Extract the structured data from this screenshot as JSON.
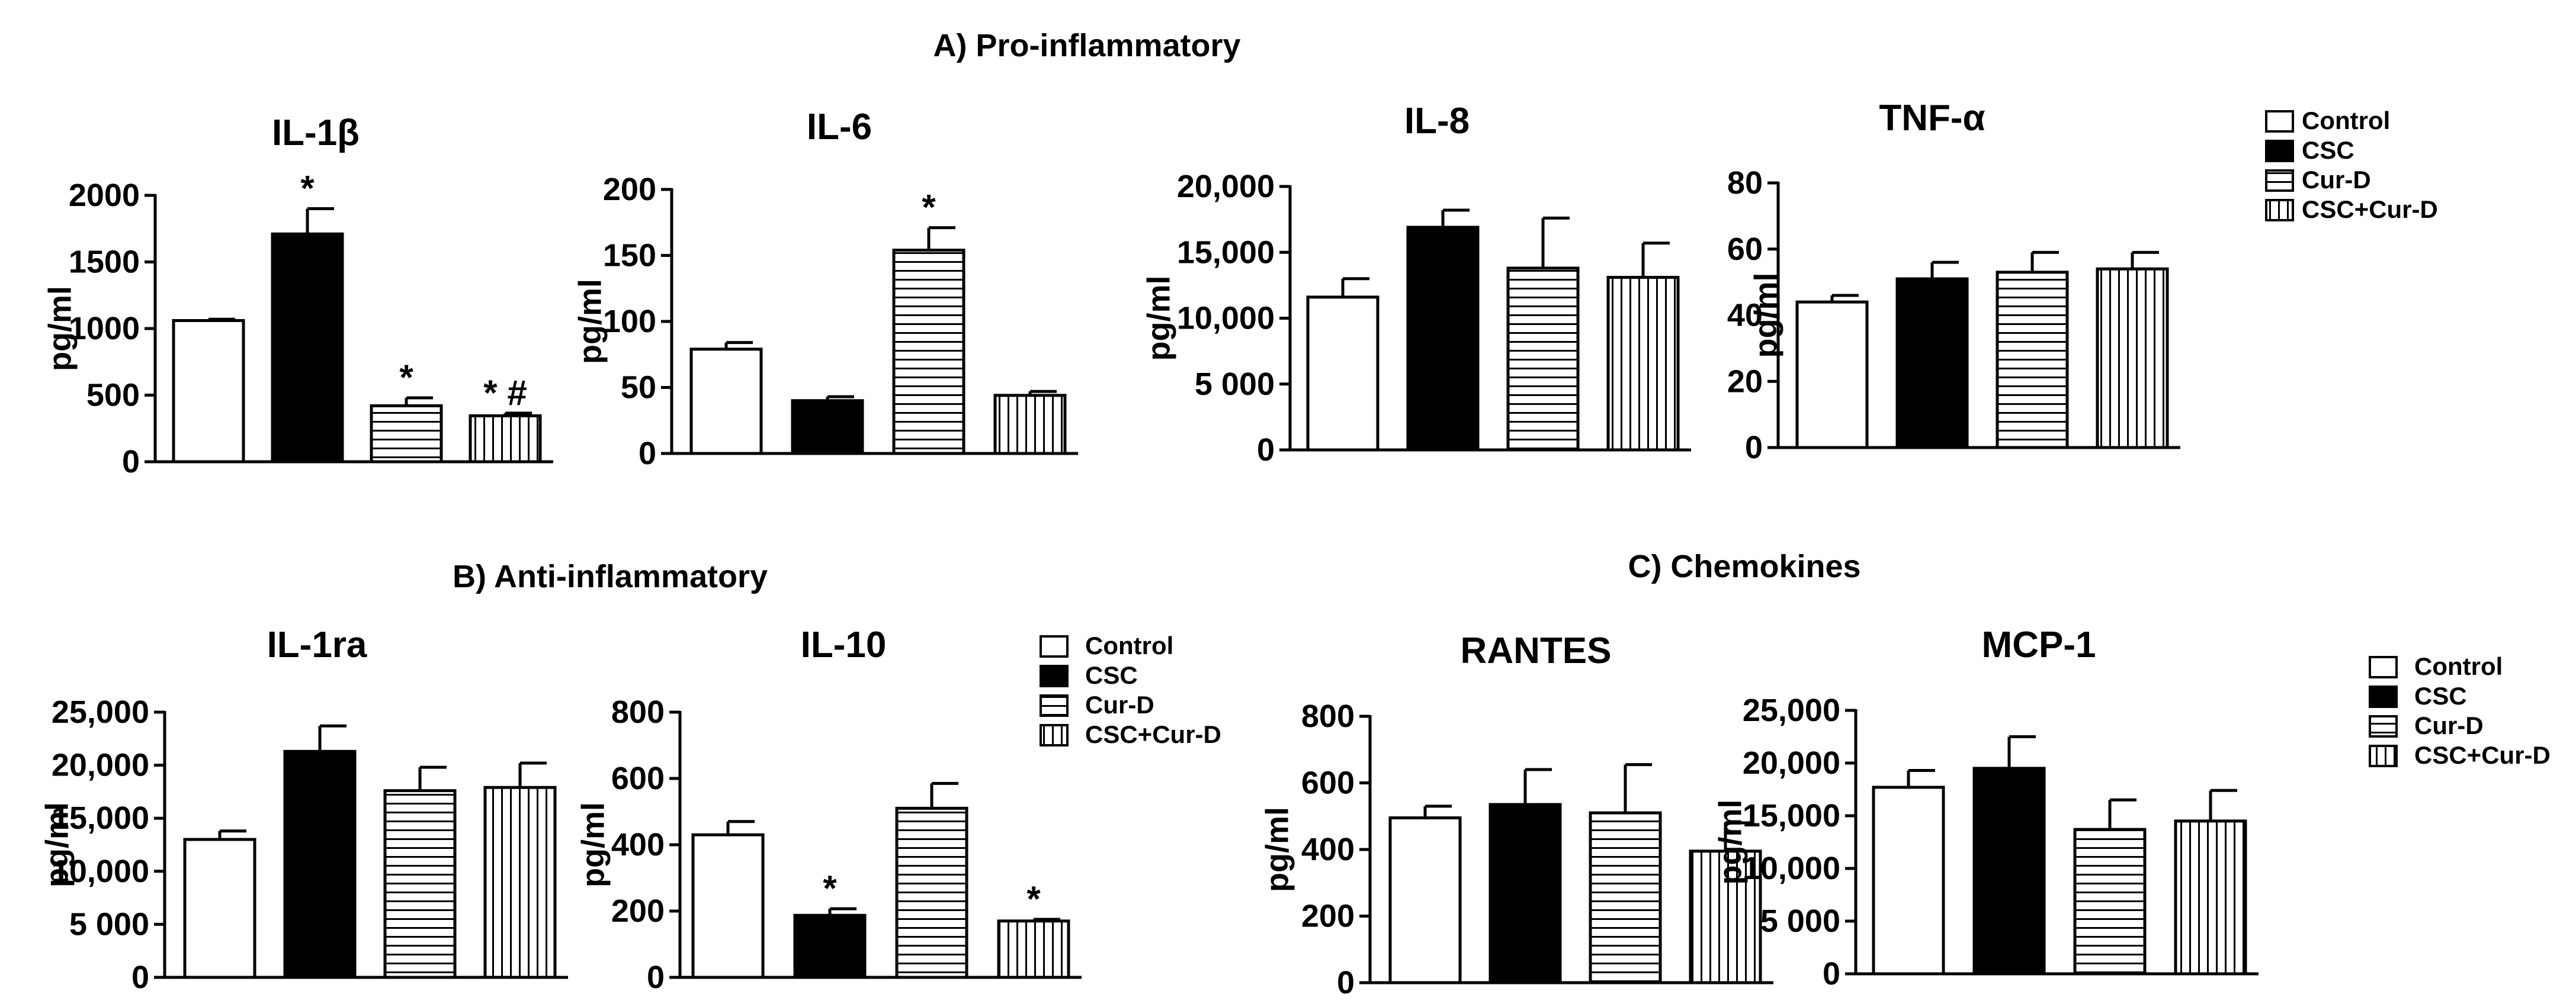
{
  "sections": {
    "a": "A) Pro-inflammatory",
    "b": "B) Anti-inflammatory",
    "c": "C) Chemokines"
  },
  "legend": {
    "items": [
      {
        "key": "control",
        "label": "Control"
      },
      {
        "key": "csc",
        "label": "CSC"
      },
      {
        "key": "curd",
        "label": "Cur-D"
      },
      {
        "key": "csccurd",
        "label": "CSC+Cur-D"
      }
    ]
  },
  "chart_data": [
    {
      "type": "bar",
      "title": "IL-1β",
      "ylabel": "pg/ml",
      "ylim": [
        0,
        2000
      ],
      "yticks": [
        "0",
        "500",
        "1000",
        "1500",
        "2000"
      ],
      "categories": [
        "Control",
        "CSC",
        "Cur-D",
        "CSC+Cur-D"
      ],
      "values": [
        1060,
        1710,
        420,
        345
      ],
      "errors": [
        10,
        190,
        60,
        20
      ],
      "annotations": [
        "",
        "*",
        "*",
        "* #"
      ]
    },
    {
      "type": "bar",
      "title": "IL-6",
      "ylabel": "pg/ml",
      "ylim": [
        0,
        200
      ],
      "yticks": [
        "0",
        "50",
        "100",
        "150",
        "200"
      ],
      "categories": [
        "Control",
        "CSC",
        "Cur-D",
        "CSC+Cur-D"
      ],
      "values": [
        79,
        40,
        154,
        44
      ],
      "errors": [
        5,
        3,
        17,
        3
      ],
      "annotations": [
        "",
        "",
        "*",
        ""
      ]
    },
    {
      "type": "bar",
      "title": "IL-8",
      "ylabel": "pg/ml",
      "ylim": [
        0,
        20000
      ],
      "yticks": [
        "0",
        "5 000",
        "10,000",
        "15,000",
        "20,000"
      ],
      "categories": [
        "Control",
        "CSC",
        "Cur-D",
        "CSC+Cur-D"
      ],
      "values": [
        11600,
        16900,
        13800,
        13100
      ],
      "errors": [
        1400,
        1300,
        3800,
        2600
      ],
      "annotations": [
        "",
        "",
        "",
        ""
      ]
    },
    {
      "type": "bar",
      "title": "TNF-α",
      "ylabel": "pg/ml",
      "ylim": [
        0,
        80
      ],
      "yticks": [
        "0",
        "20",
        "40",
        "60",
        "80"
      ],
      "categories": [
        "Control",
        "CSC",
        "Cur-D",
        "CSC+Cur-D"
      ],
      "values": [
        44,
        51,
        53,
        54
      ],
      "errors": [
        2,
        5,
        6,
        5
      ],
      "annotations": [
        "",
        "",
        "",
        ""
      ]
    },
    {
      "type": "bar",
      "title": "IL-1ra",
      "ylabel": "pg/ml",
      "ylim": [
        0,
        25000
      ],
      "yticks": [
        "0",
        "5 000",
        "10,000",
        "15,000",
        "20,000",
        "25,000"
      ],
      "categories": [
        "Control",
        "CSC",
        "Cur-D",
        "CSC+Cur-D"
      ],
      "values": [
        13000,
        21300,
        17600,
        17900
      ],
      "errors": [
        800,
        2400,
        2200,
        2300
      ],
      "annotations": [
        "",
        "",
        "",
        ""
      ]
    },
    {
      "type": "bar",
      "title": "IL-10",
      "ylabel": "pg/ml",
      "ylim": [
        0,
        800
      ],
      "yticks": [
        "0",
        "200",
        "400",
        "600",
        "800"
      ],
      "categories": [
        "Control",
        "CSC",
        "Cur-D",
        "CSC+Cur-D"
      ],
      "values": [
        430,
        187,
        510,
        170
      ],
      "errors": [
        40,
        20,
        75,
        5
      ],
      "annotations": [
        "",
        "*",
        "",
        "*"
      ]
    },
    {
      "type": "bar",
      "title": "RANTES",
      "ylabel": "pg/ml",
      "ylim": [
        0,
        800
      ],
      "yticks": [
        "0",
        "200",
        "400",
        "600",
        "800"
      ],
      "categories": [
        "Control",
        "CSC",
        "Cur-D",
        "CSC+Cur-D"
      ],
      "values": [
        495,
        535,
        510,
        395
      ],
      "errors": [
        35,
        105,
        145,
        85
      ],
      "annotations": [
        "",
        "",
        "",
        ""
      ]
    },
    {
      "type": "bar",
      "title": "MCP-1",
      "ylabel": "pg/ml",
      "ylim": [
        0,
        25000
      ],
      "yticks": [
        "0",
        "5 000",
        "10,000",
        "15,000",
        "20,000",
        "25,000"
      ],
      "categories": [
        "Control",
        "CSC",
        "Cur-D",
        "CSC+Cur-D"
      ],
      "values": [
        17700,
        19500,
        13700,
        14500
      ],
      "errors": [
        1600,
        3000,
        2800,
        2900
      ],
      "annotations": [
        "",
        "",
        "",
        ""
      ]
    }
  ]
}
